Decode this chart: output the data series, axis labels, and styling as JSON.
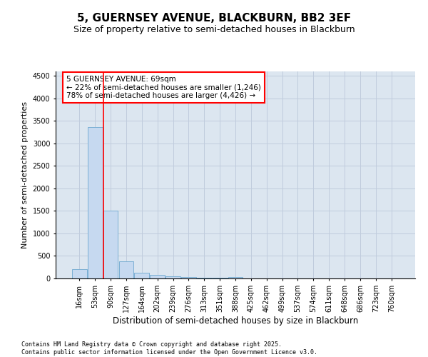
{
  "title1": "5, GUERNSEY AVENUE, BLACKBURN, BB2 3EF",
  "title2": "Size of property relative to semi-detached houses in Blackburn",
  "xlabel": "Distribution of semi-detached houses by size in Blackburn",
  "ylabel": "Number of semi-detached properties",
  "categories": [
    "16sqm",
    "53sqm",
    "90sqm",
    "127sqm",
    "164sqm",
    "202sqm",
    "239sqm",
    "276sqm",
    "313sqm",
    "351sqm",
    "388sqm",
    "425sqm",
    "462sqm",
    "499sqm",
    "537sqm",
    "574sqm",
    "611sqm",
    "648sqm",
    "686sqm",
    "723sqm",
    "760sqm"
  ],
  "values": [
    200,
    3370,
    1500,
    380,
    130,
    80,
    50,
    30,
    20,
    10,
    30,
    5,
    0,
    0,
    0,
    0,
    0,
    0,
    0,
    0,
    0
  ],
  "bar_color": "#c6d9f0",
  "bar_edge_color": "#7bafd4",
  "property_line_color": "red",
  "property_line_x": 1.55,
  "annotation_text": "5 GUERNSEY AVENUE: 69sqm\n← 22% of semi-detached houses are smaller (1,246)\n78% of semi-detached houses are larger (4,426) →",
  "ylim": [
    0,
    4600
  ],
  "yticks": [
    0,
    500,
    1000,
    1500,
    2000,
    2500,
    3000,
    3500,
    4000,
    4500
  ],
  "grid_color": "#c0ccdd",
  "background_color": "#dce6f0",
  "footer_text": "Contains HM Land Registry data © Crown copyright and database right 2025.\nContains public sector information licensed under the Open Government Licence v3.0.",
  "title1_fontsize": 11,
  "title2_fontsize": 9,
  "xlabel_fontsize": 8.5,
  "ylabel_fontsize": 8,
  "tick_fontsize": 7,
  "annotation_fontsize": 7.5,
  "footer_fontsize": 6
}
